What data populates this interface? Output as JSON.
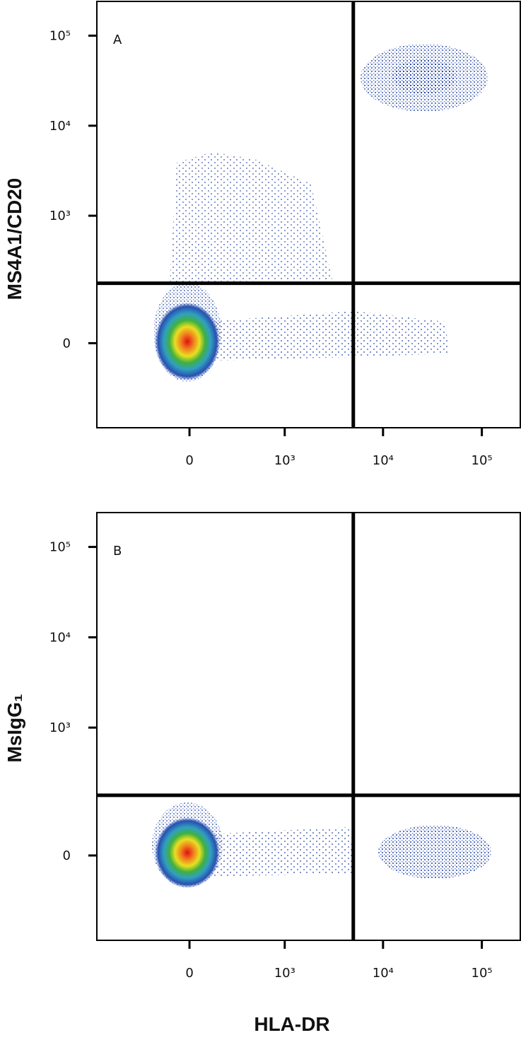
{
  "chart_data": [
    {
      "type": "scatter",
      "panel_label": "A",
      "ylabel": "MS4A1/CD20",
      "xlim": [
        -940,
        245000
      ],
      "ylim": [
        -330,
        240000
      ],
      "xscale": "biexponential",
      "yscale": "biexponential",
      "xticks": [
        0,
        {
          "value": 1000,
          "label": "10³"
        },
        {
          "value": 10000,
          "label": "10⁴"
        },
        {
          "value": 100000,
          "label": "10⁵"
        }
      ],
      "yticks": [
        0,
        {
          "value": 1000,
          "label": "10³"
        },
        {
          "value": 10000,
          "label": "10⁴"
        },
        {
          "value": 100000,
          "label": "10⁵"
        }
      ],
      "gate": {
        "x": 5000,
        "y": 170
      }
    },
    {
      "type": "scatter",
      "panel_label": "B",
      "ylabel": "MsIgG₁",
      "xlabel": "HLA-DR",
      "xlim": [
        -940,
        245000
      ],
      "ylim": [
        -330,
        240000
      ],
      "xscale": "biexponential",
      "yscale": "biexponential",
      "xticks": [
        0,
        {
          "value": 1000,
          "label": "10³"
        },
        {
          "value": 10000,
          "label": "10⁴"
        },
        {
          "value": 100000,
          "label": "10⁵"
        }
      ],
      "yticks": [
        0,
        {
          "value": 1000,
          "label": "10³"
        },
        {
          "value": 10000,
          "label": "10⁴"
        },
        {
          "value": 100000,
          "label": "10⁵"
        }
      ],
      "gate": {
        "x": 5000,
        "y": 170
      }
    }
  ]
}
